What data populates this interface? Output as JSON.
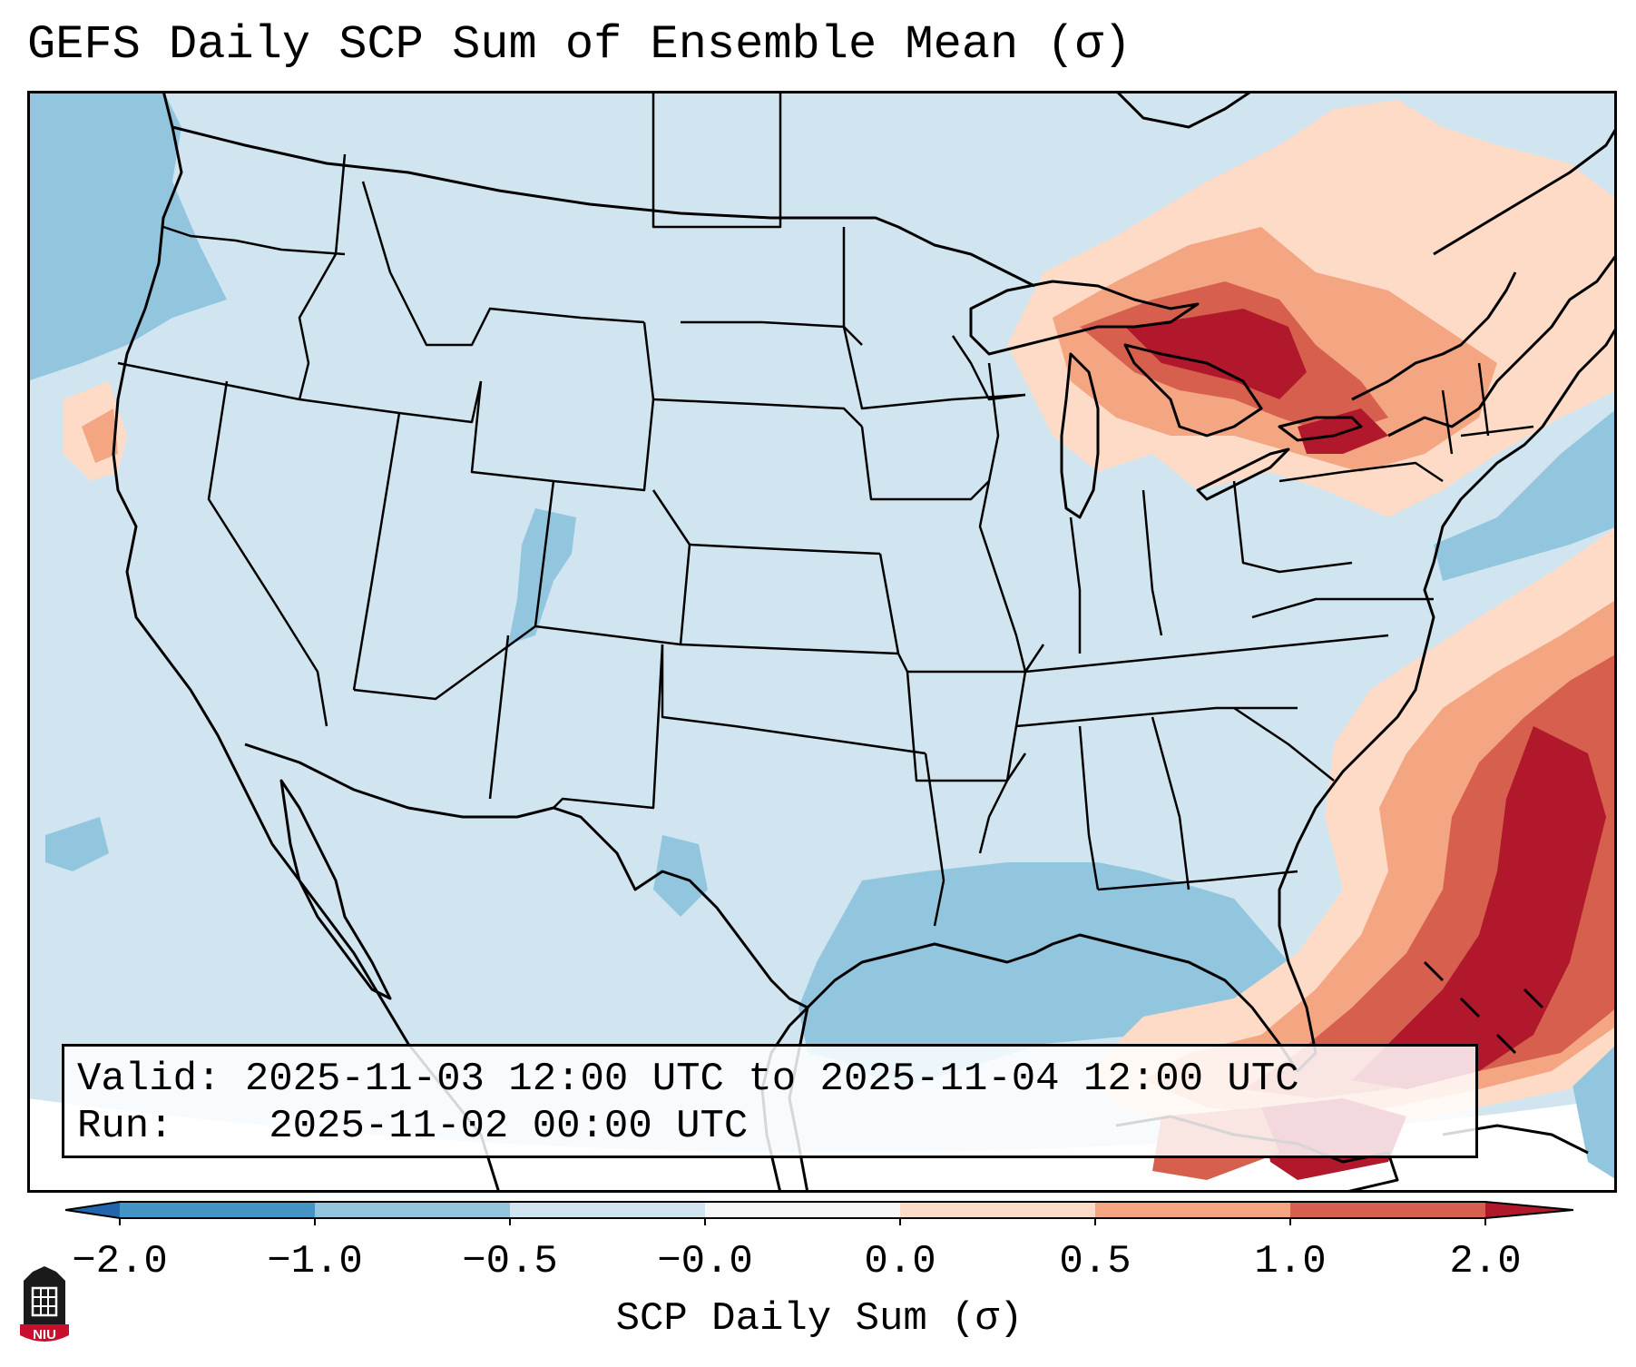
{
  "title": "GEFS Daily SCP Sum of Ensemble Mean (σ)",
  "info": {
    "valid_label": "Valid:",
    "valid_value": "2025-11-03 12:00 UTC to 2025-11-04 12:00 UTC",
    "run_label": "Run:",
    "run_value": "2025-11-02 00:00 UTC"
  },
  "colorbar": {
    "label": "SCP Daily Sum (σ)",
    "ticks": [
      "−2.0",
      "−1.0",
      "−0.5",
      "−0.0",
      "0.0",
      "0.5",
      "1.0",
      "2.0"
    ],
    "bins": [
      {
        "from": -2.0,
        "to": -1.0,
        "color": "#4393c3"
      },
      {
        "from": -1.0,
        "to": -0.5,
        "color": "#92c5de"
      },
      {
        "from": -0.5,
        "to": -0.0,
        "color": "#d1e5f0"
      },
      {
        "from": -0.0,
        "to": 0.0,
        "color": "#f7f7f7"
      },
      {
        "from": 0.0,
        "to": 0.5,
        "color": "#fddbc7"
      },
      {
        "from": 0.5,
        "to": 1.0,
        "color": "#f4a582"
      },
      {
        "from": 1.0,
        "to": 2.0,
        "color": "#d6604d"
      }
    ],
    "extend_low_color": "#2166ac",
    "extend_high_color": "#b2182b"
  },
  "colors": {
    "background": "#d1e5f0",
    "negative": "#92c5de",
    "positive_low": "#fddbc7",
    "positive_mid": "#f4a582",
    "positive_high": "#d6604d",
    "positive_max": "#b2182b"
  },
  "logo": {
    "text": "NIU"
  }
}
